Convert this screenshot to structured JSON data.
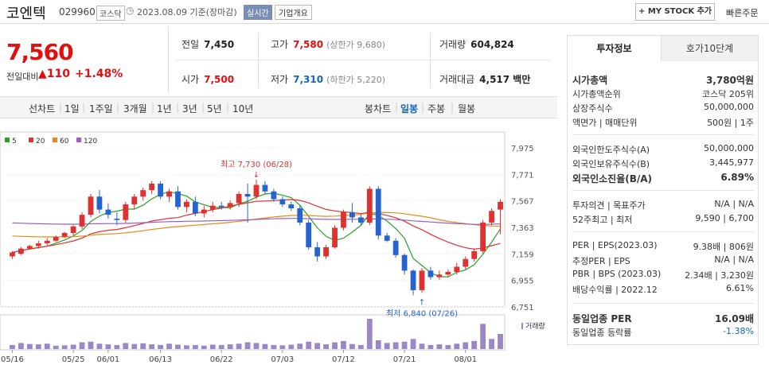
{
  "header": {
    "name": "코엔텍",
    "code": "029960",
    "market": "코스닥",
    "date": "2023.08.09 기준(장마감)",
    "realtime": "실시간",
    "corp": "기업개요",
    "mystock": "+ MY STOCK 추가",
    "quick": "빠른주문"
  },
  "price": {
    "now": "7,560",
    "cmp_label": "전일대비",
    "cmp_val": "▲110",
    "cmp_pct": "+1.48%"
  },
  "stats": {
    "prev_lbl": "전일",
    "prev": "7,450",
    "high_lbl": "고가",
    "high": "7,580",
    "high_sub": "(상한가 9,680)",
    "vol_lbl": "거래량",
    "vol": "604,824",
    "open_lbl": "시가",
    "open": "7,500",
    "low_lbl": "저가",
    "low": "7,310",
    "low_sub": "(하한가 5,220)",
    "amt_lbl": "거래대금",
    "amt": "4,517 백만"
  },
  "tabs": {
    "line": "선차트",
    "d1": "1일",
    "w1": "1주일",
    "m3": "3개월",
    "y1": "1년",
    "y3": "3년",
    "y5": "5년",
    "y10": "10년",
    "candle": "봉차트",
    "day": "일봉",
    "week": "주봉",
    "month": "월봉"
  },
  "chart_data": {
    "type": "candlestick",
    "ylim": [
      6751,
      7975
    ],
    "yticks": [
      "7,975",
      "7,771",
      "7,567",
      "7,363",
      "7,159",
      "6,955",
      "6,751"
    ],
    "xticks": [
      "05/16",
      "05/25",
      "06/01",
      "06/13",
      "06/22",
      "07/03",
      "07/12",
      "07/21",
      "08/01"
    ],
    "xtick_index": [
      0,
      7,
      11,
      17,
      24,
      31,
      38,
      45,
      52
    ],
    "legend": [
      "5",
      "20",
      "60",
      "120"
    ],
    "legend_colors": [
      "#27a327",
      "#e03030",
      "#e88a1a",
      "#9a5cc6"
    ],
    "high_label": "최고 7,730 (06/28)",
    "high_index": 28,
    "high_value": 7730,
    "low_label": "최저 6,840 (07/26)",
    "low_index": 47,
    "low_value": 6840,
    "volume_label": "거래량",
    "candles": [
      [
        7140,
        7180,
        7120,
        7170
      ],
      [
        7160,
        7210,
        7150,
        7200
      ],
      [
        7200,
        7230,
        7190,
        7220
      ],
      [
        7220,
        7260,
        7200,
        7240
      ],
      [
        7240,
        7280,
        7220,
        7260
      ],
      [
        7260,
        7300,
        7250,
        7290
      ],
      [
        7290,
        7330,
        7280,
        7320
      ],
      [
        7320,
        7380,
        7300,
        7370
      ],
      [
        7370,
        7480,
        7350,
        7460
      ],
      [
        7460,
        7620,
        7440,
        7600
      ],
      [
        7600,
        7650,
        7470,
        7500
      ],
      [
        7500,
        7550,
        7430,
        7460
      ],
      [
        7430,
        7480,
        7380,
        7420
      ],
      [
        7420,
        7560,
        7400,
        7540
      ],
      [
        7540,
        7620,
        7500,
        7600
      ],
      [
        7600,
        7670,
        7570,
        7650
      ],
      [
        7650,
        7720,
        7620,
        7700
      ],
      [
        7700,
        7720,
        7580,
        7600
      ],
      [
        7600,
        7660,
        7560,
        7640
      ],
      [
        7640,
        7680,
        7500,
        7520
      ],
      [
        7520,
        7580,
        7480,
        7560
      ],
      [
        7560,
        7600,
        7450,
        7470
      ],
      [
        7470,
        7530,
        7440,
        7500
      ],
      [
        7500,
        7560,
        7480,
        7530
      ],
      [
        7530,
        7560,
        7500,
        7520
      ],
      [
        7520,
        7570,
        7500,
        7550
      ],
      [
        7550,
        7640,
        7520,
        7620
      ],
      [
        7620,
        7700,
        7400,
        7600
      ],
      [
        7600,
        7730,
        7580,
        7690
      ],
      [
        7690,
        7720,
        7620,
        7640
      ],
      [
        7640,
        7660,
        7560,
        7580
      ],
      [
        7580,
        7600,
        7520,
        7540
      ],
      [
        7540,
        7560,
        7490,
        7510
      ],
      [
        7510,
        7530,
        7380,
        7400
      ],
      [
        7400,
        7420,
        7190,
        7210
      ],
      [
        7210,
        7250,
        7100,
        7140
      ],
      [
        7140,
        7230,
        7120,
        7210
      ],
      [
        7210,
        7380,
        7200,
        7360
      ],
      [
        7360,
        7500,
        7340,
        7480
      ],
      [
        7480,
        7550,
        7400,
        7440
      ],
      [
        7440,
        7460,
        7380,
        7400
      ],
      [
        7400,
        7680,
        7380,
        7660
      ],
      [
        7660,
        7680,
        7270,
        7300
      ],
      [
        7300,
        7320,
        7250,
        7260
      ],
      [
        7260,
        7280,
        7130,
        7150
      ],
      [
        7150,
        7160,
        7000,
        7030
      ],
      [
        7030,
        7040,
        6840,
        6880
      ],
      [
        6880,
        7050,
        6860,
        7030
      ],
      [
        7030,
        7060,
        6960,
        6980
      ],
      [
        6980,
        7030,
        6960,
        7000
      ],
      [
        7000,
        7040,
        6980,
        7020
      ],
      [
        7020,
        7090,
        7000,
        7060
      ],
      [
        7060,
        7140,
        7040,
        7120
      ],
      [
        7120,
        7200,
        7100,
        7180
      ],
      [
        7180,
        7420,
        7160,
        7400
      ],
      [
        7400,
        7510,
        7380,
        7490
      ],
      [
        7500,
        7580,
        7310,
        7560
      ]
    ],
    "volumes": [
      12,
      18,
      15,
      14,
      16,
      10,
      11,
      13,
      20,
      22,
      16,
      14,
      12,
      18,
      15,
      17,
      14,
      12,
      16,
      13,
      11,
      12,
      10,
      13,
      12,
      14,
      16,
      20,
      18,
      15,
      12,
      11,
      13,
      16,
      22,
      18,
      14,
      20,
      24,
      15,
      12,
      90,
      26,
      18,
      20,
      22,
      30,
      16,
      12,
      14,
      12,
      16,
      20,
      24,
      75,
      30,
      45
    ]
  },
  "info": {
    "tab_on": "투자정보",
    "tab_off": "호가10단계",
    "rows": [
      {
        "l": "시가총액",
        "r": "3,780억원",
        "bold": true
      },
      {
        "l": "시가총액순위",
        "r": "코스닥 205위"
      },
      {
        "l": "상장주식수",
        "r": "50,000,000"
      },
      {
        "l": "액면가 | 매매단위",
        "r": "500원 | 1주"
      },
      {
        "l": "외국인한도주식수(A)",
        "r": "50,000,000"
      },
      {
        "l": "외국인보유주식수(B)",
        "r": "3,445,977"
      },
      {
        "l": "외국인소진율(B/A)",
        "r": "6.89%",
        "bold": true
      },
      {
        "l": "투자의견 | 목표주가",
        "r": "N/A | N/A"
      },
      {
        "l": "52주최고 | 최저",
        "r": "9,590 | 6,700"
      },
      {
        "l": "PER | EPS(2023.03)",
        "r": "9.38배 | 806원"
      },
      {
        "l": "추정PER | EPS",
        "r": "N/A | N/A"
      },
      {
        "l": "PBR | BPS (2023.03)",
        "r": "2.34배 | 3,230원"
      },
      {
        "l": "배당수익률 | 2022.12",
        "r": "6.61%"
      },
      {
        "l": "동일업종 PER",
        "r": "16.09배",
        "bold": true
      },
      {
        "l": "동일업종 등락률",
        "r": "-1.38%"
      }
    ]
  }
}
